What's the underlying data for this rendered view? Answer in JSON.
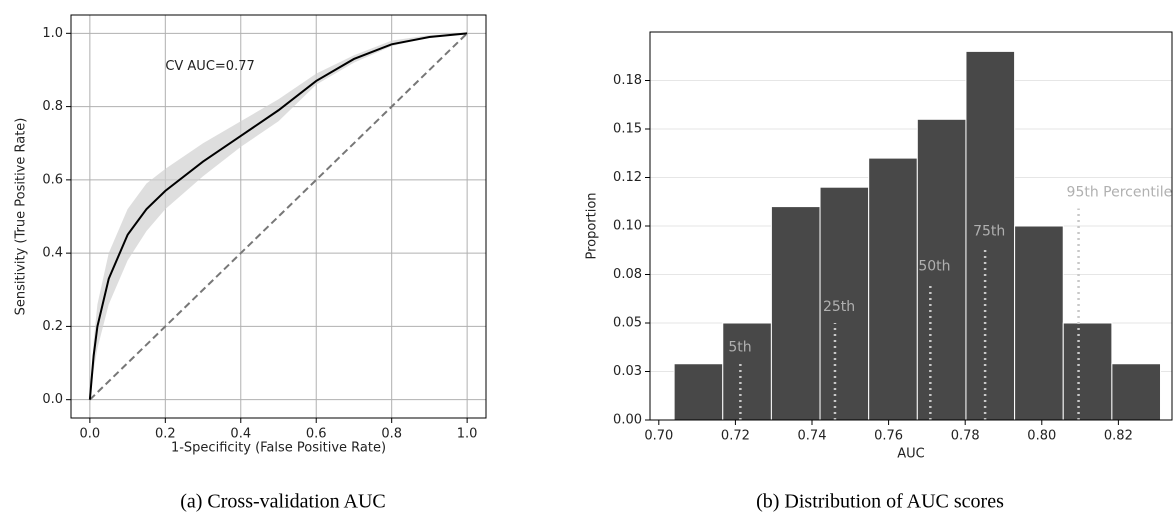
{
  "chart_data": [
    {
      "type": "roc",
      "xlabel": "1-Specificity (False Positive Rate)",
      "ylabel": "Sensitivity (True Positive Rate)",
      "annotation": "CV AUC=0.77",
      "x": [
        0,
        0.01,
        0.02,
        0.05,
        0.1,
        0.15,
        0.2,
        0.3,
        0.4,
        0.5,
        0.6,
        0.7,
        0.8,
        0.9,
        1.0
      ],
      "series": [
        {
          "color": "#000000",
          "values": [
            0,
            0.12,
            0.2,
            0.33,
            0.45,
            0.52,
            0.57,
            0.65,
            0.72,
            0.79,
            0.87,
            0.93,
            0.97,
            0.99,
            1.0
          ]
        }
      ],
      "band": {
        "color": "#d0d0d0",
        "lower": [
          0,
          0.08,
          0.14,
          0.26,
          0.38,
          0.46,
          0.52,
          0.61,
          0.69,
          0.76,
          0.86,
          0.92,
          0.965,
          0.99,
          1.0
        ],
        "upper": [
          0,
          0.16,
          0.26,
          0.4,
          0.52,
          0.59,
          0.63,
          0.7,
          0.76,
          0.82,
          0.89,
          0.94,
          0.98,
          0.995,
          1.0
        ]
      },
      "chance_line": true,
      "grid": true,
      "xlim": [
        -0.05,
        1.05
      ],
      "ylim": [
        -0.05,
        1.05
      ],
      "xticks": [
        {
          "value": 0,
          "label": "0.0"
        },
        0.2,
        0.4,
        0.6,
        0.8,
        {
          "value": 1,
          "label": "1.0"
        }
      ],
      "yticks": [
        {
          "value": 0,
          "label": "0.0"
        },
        0.2,
        0.4,
        0.6,
        0.8,
        {
          "value": 1,
          "label": "1.0"
        }
      ]
    },
    {
      "type": "histogram",
      "xlabel": "AUC",
      "ylabel": "Proportion",
      "color": "#484848",
      "bins": [
        0.704,
        0.7167,
        0.7294,
        0.7421,
        0.7548,
        0.7675,
        0.7802,
        0.7929,
        0.8056,
        0.8183,
        0.831
      ],
      "values": [
        0.029,
        0.05,
        0.11,
        0.12,
        0.135,
        0.155,
        0.19,
        0.1,
        0.05,
        0.029
      ],
      "percentiles": [
        {
          "label": "5th",
          "value": 0.7213,
          "height": 0.029
        },
        {
          "label": "25th",
          "value": 0.746,
          "height": 0.05
        },
        {
          "label": "50th",
          "value": 0.7709,
          "height": 0.071
        },
        {
          "label": "75th",
          "value": 0.7852,
          "height": 0.089
        },
        {
          "label": "95th Percentile",
          "value": 0.8096,
          "height": 0.109
        }
      ],
      "grid": true,
      "xlim": [
        0.6977,
        0.834
      ],
      "ylim": [
        0,
        0.2
      ],
      "xticks": [
        {
          "value": 0.7,
          "label": "0.70"
        },
        0.72,
        0.74,
        0.76,
        0.78,
        {
          "value": 0.8,
          "label": "0.80"
        },
        0.82
      ],
      "yticks": [
        {
          "value": 0,
          "label": "0.00"
        },
        {
          "value": 0.025,
          "label": "0.03"
        },
        0.05,
        {
          "value": 0.075,
          "label": "0.08"
        },
        {
          "value": 0.1,
          "label": "0.10"
        },
        {
          "value": 0.125,
          "label": "0.12"
        },
        0.15,
        {
          "value": 0.175,
          "label": "0.18"
        }
      ]
    }
  ],
  "captions": [
    "(a) Cross-validation AUC",
    "(b) Distribution of AUC scores"
  ]
}
